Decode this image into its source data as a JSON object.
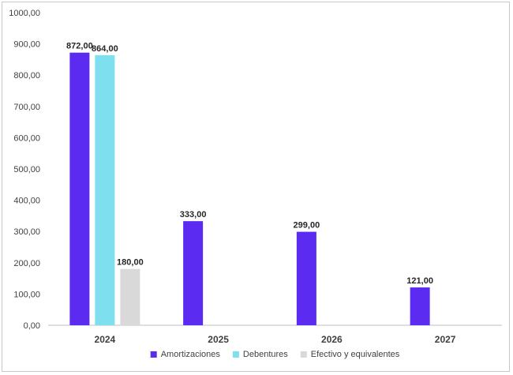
{
  "chart_data": {
    "type": "bar",
    "categories": [
      "2024",
      "2025",
      "2026",
      "2027"
    ],
    "series": [
      {
        "name": "Amortizaciones",
        "color": "#5b2bf2",
        "values": [
          872,
          333,
          299,
          121
        ]
      },
      {
        "name": "Debentures",
        "color": "#7ee0ef",
        "values": [
          864,
          null,
          null,
          null
        ]
      },
      {
        "name": "Efectivo y equivalentes",
        "color": "#d9d9d9",
        "values": [
          180,
          null,
          null,
          null
        ]
      }
    ],
    "data_labels": {
      "Amortizaciones": [
        "872,00",
        "333,00",
        "299,00",
        "121,00"
      ],
      "Debentures": [
        "864,00",
        null,
        null,
        null
      ],
      "Efectivo y equivalentes": [
        "180,00",
        null,
        null,
        null
      ]
    },
    "ylim": [
      0,
      1000
    ],
    "yticks": [
      0,
      100,
      200,
      300,
      400,
      500,
      600,
      700,
      800,
      900,
      1000
    ],
    "ytick_labels": [
      "0,00",
      "100,00",
      "200,00",
      "300,00",
      "400,00",
      "500,00",
      "600,00",
      "700,00",
      "800,00",
      "900,00",
      "1000,00"
    ],
    "grid": false,
    "legend_position": "bottom",
    "title": "",
    "xlabel": "",
    "ylabel": ""
  }
}
